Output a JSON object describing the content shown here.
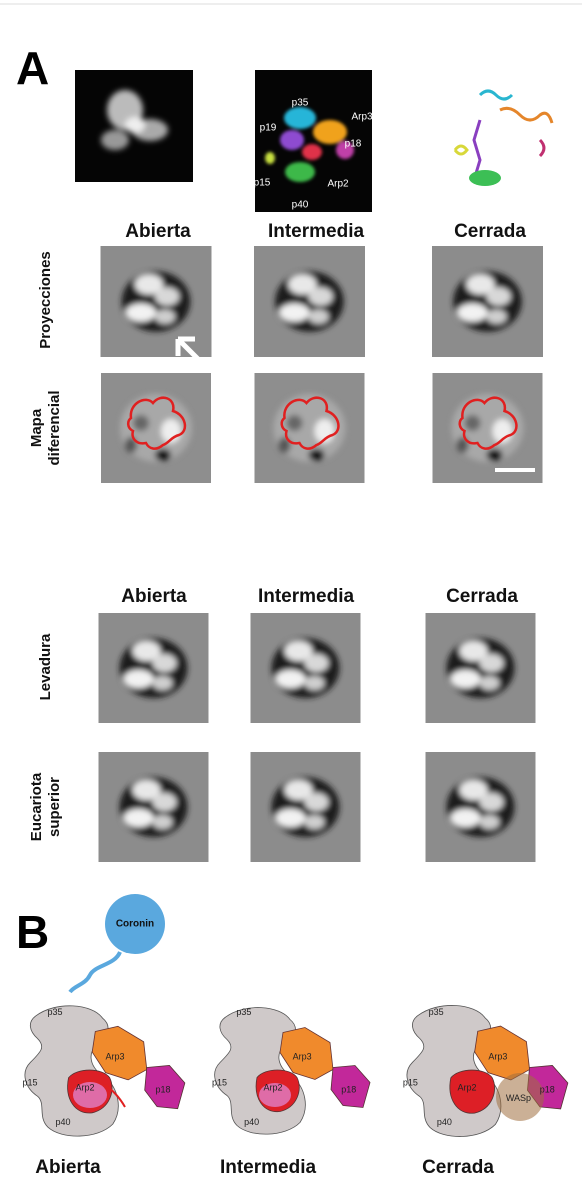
{
  "panel_a": {
    "label": "A",
    "subunits": [
      "p35",
      "Arp3",
      "p19",
      "p18",
      "p15",
      "Arp2",
      "p40"
    ],
    "sections": [
      {
        "conformations": [
          "Abierta",
          "Intermedia",
          "Cerrada"
        ],
        "rows": [
          [
            "Proyecciones"
          ],
          [
            "Mapa",
            "diferencial"
          ]
        ]
      },
      {
        "conformations": [
          "Abierta",
          "Intermedia",
          "Cerrada"
        ],
        "rows": [
          [
            "Levadura"
          ],
          [
            "Eucariota",
            "superior"
          ]
        ]
      }
    ]
  },
  "panel_b": {
    "label": "B",
    "coronin": "Coronin",
    "states": [
      {
        "title": "Abierta",
        "labels": [
          "p35",
          "Arp3",
          "p15",
          "p18",
          "Arp2",
          "p40"
        ]
      },
      {
        "title": "Intermedia",
        "labels": [
          "p35",
          "Arp3",
          "p15",
          "p18",
          "Arp2",
          "p40"
        ]
      },
      {
        "title": "Cerrada",
        "labels": [
          "p35",
          "Arp3",
          "p15",
          "p18",
          "Arp2",
          "p40",
          "WASp"
        ]
      }
    ]
  }
}
